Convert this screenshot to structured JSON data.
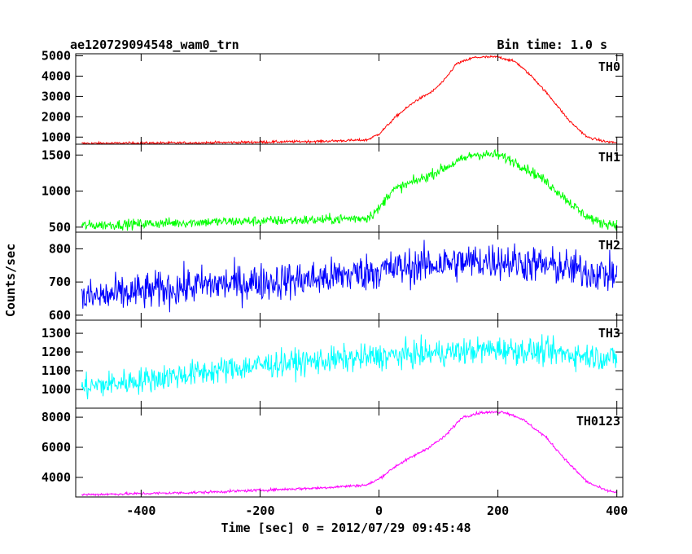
{
  "header": {
    "title": "ae120729094548_wam0_trn",
    "bin_time": "Bin time: 1.0 s"
  },
  "axes": {
    "ylabel": "Counts/sec",
    "xlabel": "Time [sec] 0 = 2012/07/29 09:45:48"
  },
  "chart_data": {
    "type": "line",
    "x_range": [
      -510,
      410
    ],
    "x_ticks": [
      -400,
      -200,
      0,
      200,
      400
    ],
    "bin_time_s": 1.0,
    "panels": [
      {
        "name": "TH0",
        "color": "#ff0000",
        "ylim": [
          650,
          5100
        ],
        "yticks": [
          1000,
          2000,
          3000,
          4000,
          5000
        ],
        "noise": 30,
        "profile": [
          [
            -500,
            690
          ],
          [
            -300,
            720
          ],
          [
            -100,
            790
          ],
          [
            -20,
            860
          ],
          [
            0,
            1150
          ],
          [
            30,
            2050
          ],
          [
            60,
            2750
          ],
          [
            90,
            3250
          ],
          [
            110,
            3800
          ],
          [
            130,
            4600
          ],
          [
            160,
            4920
          ],
          [
            200,
            4950
          ],
          [
            230,
            4700
          ],
          [
            260,
            3900
          ],
          [
            290,
            2900
          ],
          [
            320,
            1800
          ],
          [
            350,
            1000
          ],
          [
            380,
            780
          ],
          [
            400,
            730
          ]
        ]
      },
      {
        "name": "TH1",
        "color": "#00ff00",
        "ylim": [
          430,
          1650
        ],
        "yticks": [
          500,
          1000,
          1500
        ],
        "noise": 35,
        "profile": [
          [
            -500,
            520
          ],
          [
            -300,
            570
          ],
          [
            -100,
            600
          ],
          [
            -20,
            630
          ],
          [
            0,
            750
          ],
          [
            20,
            1000
          ],
          [
            80,
            1200
          ],
          [
            130,
            1400
          ],
          [
            160,
            1510
          ],
          [
            200,
            1500
          ],
          [
            230,
            1400
          ],
          [
            270,
            1200
          ],
          [
            300,
            1000
          ],
          [
            340,
            700
          ],
          [
            370,
            560
          ],
          [
            400,
            540
          ]
        ]
      },
      {
        "name": "TH2",
        "color": "#0000ff",
        "ylim": [
          585,
          850
        ],
        "yticks": [
          600,
          700,
          800
        ],
        "noise": 28,
        "profile": [
          [
            -500,
            650
          ],
          [
            -300,
            690
          ],
          [
            -100,
            710
          ],
          [
            0,
            735
          ],
          [
            100,
            755
          ],
          [
            200,
            765
          ],
          [
            300,
            745
          ],
          [
            400,
            720
          ]
        ]
      },
      {
        "name": "TH3",
        "color": "#00ffff",
        "ylim": [
          900,
          1370
        ],
        "yticks": [
          1000,
          1100,
          1200,
          1300
        ],
        "noise": 35,
        "profile": [
          [
            -500,
            1010
          ],
          [
            -300,
            1090
          ],
          [
            -200,
            1130
          ],
          [
            0,
            1175
          ],
          [
            200,
            1215
          ],
          [
            300,
            1195
          ],
          [
            400,
            1165
          ]
        ]
      },
      {
        "name": "TH0123",
        "color": "#ff00ff",
        "ylim": [
          2700,
          8600
        ],
        "yticks": [
          4000,
          6000,
          8000
        ],
        "noise": 45,
        "profile": [
          [
            -500,
            2850
          ],
          [
            -300,
            3000
          ],
          [
            -100,
            3300
          ],
          [
            -20,
            3500
          ],
          [
            0,
            3900
          ],
          [
            30,
            4800
          ],
          [
            80,
            5900
          ],
          [
            110,
            6700
          ],
          [
            140,
            8000
          ],
          [
            170,
            8300
          ],
          [
            210,
            8350
          ],
          [
            240,
            7900
          ],
          [
            280,
            6700
          ],
          [
            320,
            4900
          ],
          [
            350,
            3700
          ],
          [
            380,
            3150
          ],
          [
            400,
            3000
          ]
        ]
      }
    ]
  }
}
